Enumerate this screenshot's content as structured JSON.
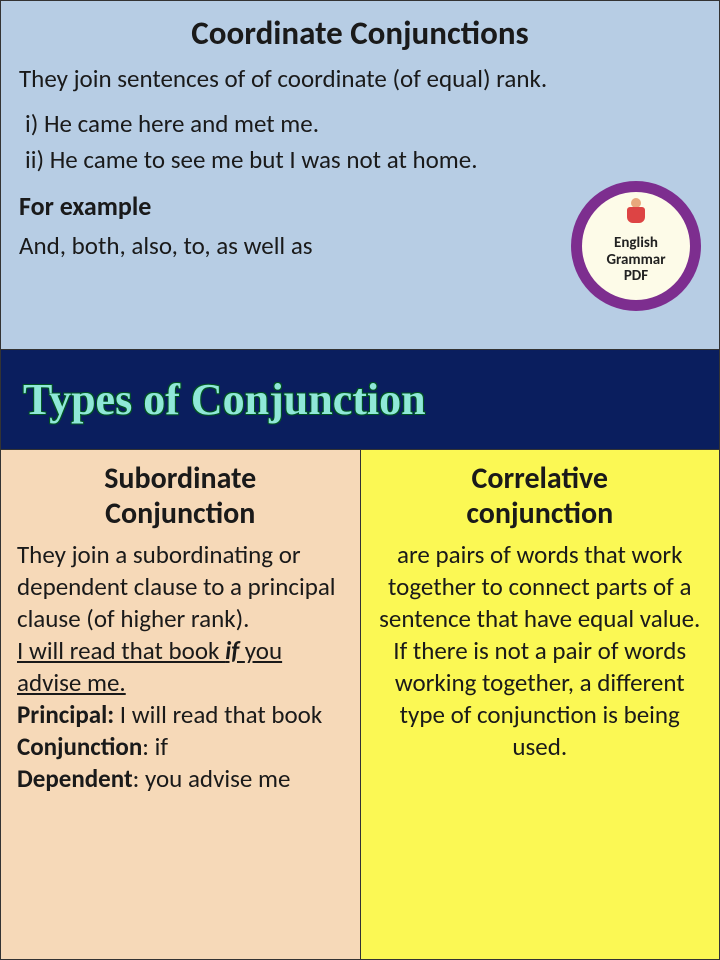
{
  "top": {
    "title": "Coordinate Conjunctions",
    "description": "They join sentences of of coordinate (of equal) rank.",
    "example1": "i)   He came here and met me.",
    "example2": "ii)  He came to see me but I was not at home.",
    "forExampleLabel": "For example",
    "forExampleText": "And, both, also, to, as well as"
  },
  "badge": {
    "line1": "English",
    "line2": "Grammar",
    "line3": "PDF",
    "outer_color": "#7d2e8f",
    "inner_color": "#fdfbe8"
  },
  "banner": {
    "text": "Types of Conjunction",
    "bg_color": "#0a1e5e",
    "text_color": "#8fe8d8"
  },
  "left": {
    "title_line1": "Subordinate",
    "title_line2": "Conjunction",
    "body_intro": "They join a subordinating or dependent clause to a principal clause (of higher rank).",
    "body_example_u1": "I will read that book ",
    "body_example_if": " if ",
    "body_example_u2": "you advise me.",
    "principal_label": "Principal:",
    "principal_text": " I will read that book",
    "conjunction_label": "Conjunction",
    "conjunction_text": ": if",
    "dependent_label": "Dependent",
    "dependent_text": ": you advise me"
  },
  "right": {
    "title_line1": "Correlative",
    "title_line2": "conjunction",
    "body": "are pairs of words that work together to connect parts of a sentence that have equal value. If there is not a pair of words working together, a different type of conjunction is being used."
  },
  "colors": {
    "top_bg": "#b7cde4",
    "left_bg": "#f6d9b8",
    "right_bg": "#fbf854"
  }
}
